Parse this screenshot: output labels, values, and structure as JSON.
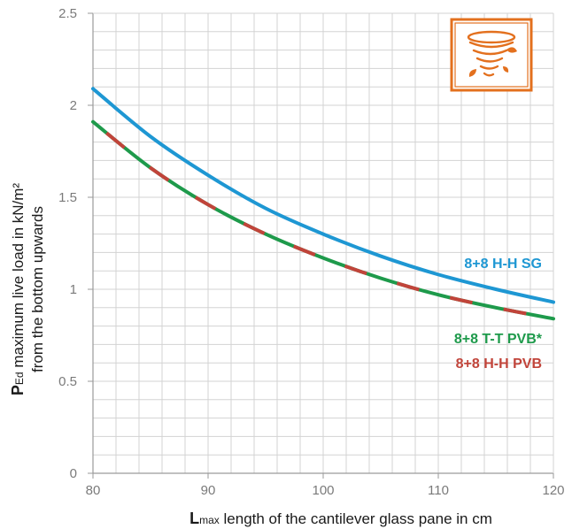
{
  "chart_data": {
    "type": "line",
    "xlim": [
      80,
      120
    ],
    "ylim": [
      0,
      2.5
    ],
    "x_ticks": [
      "80",
      "90",
      "100",
      "110",
      "120"
    ],
    "y_ticks": [
      "0",
      "0.5",
      "1",
      "1.5",
      "2",
      "2.5"
    ],
    "grid": true,
    "xlabel": {
      "bold": "L",
      "sub": "max",
      "rest": " length of the cantilever glass pane in cm"
    },
    "ylabel": {
      "bold": "P",
      "sub": "Ed",
      "line1_rest": " maximum live load in kN/m²",
      "line2": "from the bottom upwards"
    },
    "colors": {
      "sg": "#1e97d3",
      "tt_pvb": "#1e9a4b",
      "hh_pvb": "#c1443a",
      "icon": "#e3701e",
      "grid": "#d3d3d3",
      "axis": "#9a9a9a"
    },
    "icon": "tornado-icon",
    "series": [
      {
        "name": "8+8 H-H SG",
        "color": "#1e97d3",
        "x": [
          80,
          85,
          90,
          95,
          100,
          105,
          110,
          115,
          120
        ],
        "y": [
          2.09,
          1.83,
          1.62,
          1.44,
          1.3,
          1.18,
          1.08,
          1.0,
          0.93
        ]
      },
      {
        "name": "8+8 T-T PVB*",
        "color": "#1e9a4b",
        "x": [
          80,
          85,
          90,
          95,
          100,
          105,
          110,
          115,
          120
        ],
        "y": [
          1.91,
          1.66,
          1.46,
          1.3,
          1.17,
          1.06,
          0.97,
          0.9,
          0.84
        ]
      },
      {
        "name": "8+8 H-H PVB",
        "color": "#c1443a",
        "x": [
          80,
          85,
          90,
          95,
          100,
          105,
          110,
          115,
          120
        ],
        "y": [
          1.91,
          1.66,
          1.46,
          1.3,
          1.17,
          1.06,
          0.97,
          0.9,
          0.84
        ]
      }
    ]
  }
}
